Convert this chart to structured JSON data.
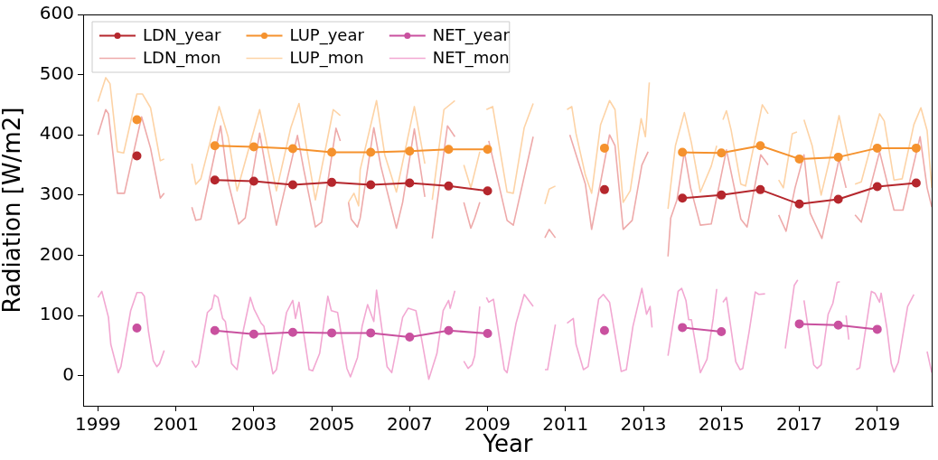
{
  "chart_data": {
    "type": "line",
    "xlabel": "Year",
    "ylabel": "Radiation [W/m2]",
    "xlim": [
      1998.62,
      2020.42
    ],
    "ylim": [
      -50,
      600
    ],
    "xticks": [
      1999,
      2001,
      2003,
      2005,
      2007,
      2009,
      2011,
      2013,
      2015,
      2017,
      2019
    ],
    "yticks": [
      0,
      100,
      200,
      300,
      400,
      500,
      600
    ],
    "grid": false,
    "legend": "top left",
    "line_style": "solid",
    "series": [
      {
        "name": "LDN_year",
        "color": "#b5272d",
        "marker": "circle",
        "x": [
          2000,
          2001,
          2002,
          2003,
          2004,
          2005,
          2006,
          2007,
          2008,
          2009,
          2010,
          2011,
          2012,
          2013,
          2014,
          2015,
          2016,
          2017,
          2018,
          2019,
          2020
        ],
        "values": [
          365,
          null,
          325,
          323,
          317,
          321,
          317,
          320,
          315,
          307,
          null,
          null,
          309,
          null,
          295,
          300,
          309,
          285,
          293,
          314,
          320
        ]
      },
      {
        "name": "LDN_mon",
        "color": "#eeaaaa",
        "marker": "none",
        "x": [
          1999.0,
          1999.2,
          1999.27,
          1999.5,
          1999.68,
          2000.12,
          2000.35,
          2000.6,
          2000.7,
          2001.0,
          2001.41,
          2001.51,
          2001.64,
          2002.15,
          2002.34,
          2002.61,
          2002.78,
          2003.15,
          2003.38,
          2003.58,
          2004.12,
          2004.28,
          2004.58,
          2004.74,
          2005.11,
          2005.22,
          2005.3,
          2005.43,
          2005.5,
          2005.66,
          2005.73,
          2006.08,
          2006.26,
          2006.66,
          2006.82,
          2007.12,
          2007.39,
          2007.5,
          2007.58,
          2007.97,
          2008.16,
          2008.3,
          2008.39,
          2008.57,
          2008.67,
          2008.8,
          2008.9,
          2009.03,
          2009.5,
          2009.66,
          2010.17,
          2010.3,
          2010.47,
          2010.58,
          2010.74,
          2010.9,
          2011.11,
          2011.51,
          2011.67,
          2012.13,
          2012.27,
          2012.48,
          2012.71,
          2012.96,
          2013.12,
          2013.4,
          2013.63,
          2013.7,
          2013.86,
          2014.05,
          2014.21,
          2014.46,
          2014.74,
          2015.13,
          2015.5,
          2015.66,
          2016.01,
          2016.2,
          2016.3,
          2016.47,
          2016.66,
          2016.89,
          2017.12,
          2017.28,
          2017.58,
          2018.02,
          2018.2,
          2018.35,
          2018.43,
          2018.59,
          2019.06,
          2019.43,
          2019.66,
          2020.1,
          2020.28,
          2020.4
        ],
        "values": [
          400,
          442,
          435,
          303,
          303,
          430,
          378,
          295,
          303,
          null,
          280,
          258,
          260,
          415,
          322,
          252,
          262,
          403,
          318,
          250,
          399,
          343,
          247,
          255,
          411,
          390,
          null,
          288,
          260,
          247,
          262,
          412,
          348,
          245,
          288,
          410,
          297,
          null,
          228,
          415,
          397,
          null,
          288,
          245,
          262,
          288,
          null,
          390,
          258,
          250,
          397,
          null,
          229,
          243,
          229,
          null,
          400,
          318,
          243,
          400,
          382,
          243,
          258,
          350,
          372,
          null,
          198,
          262,
          292,
          372,
          312,
          250,
          252,
          375,
          260,
          247,
          367,
          350,
          null,
          267,
          240,
          312,
          367,
          270,
          228,
          360,
          312,
          null,
          267,
          255,
          372,
          275,
          275,
          397,
          312,
          280
        ]
      },
      {
        "name": "LUP_year",
        "color": "#f5922e",
        "marker": "circle",
        "x": [
          2000,
          2001,
          2002,
          2003,
          2004,
          2005,
          2006,
          2007,
          2008,
          2009,
          2010,
          2011,
          2012,
          2013,
          2014,
          2015,
          2016,
          2017,
          2018,
          2019,
          2020
        ],
        "values": [
          425,
          null,
          382,
          380,
          377,
          371,
          371,
          373,
          376,
          376,
          null,
          null,
          378,
          null,
          371,
          370,
          382,
          360,
          363,
          378,
          378
        ]
      },
      {
        "name": "LUP_mon",
        "color": "#fdd3a6",
        "marker": "none",
        "x": [
          1999.0,
          1999.2,
          1999.31,
          1999.5,
          1999.66,
          2000.0,
          2000.14,
          2000.35,
          2000.6,
          2000.7,
          2001.0,
          2001.41,
          2001.51,
          2001.64,
          2002.11,
          2002.34,
          2002.57,
          2003.15,
          2003.58,
          2003.95,
          2004.16,
          2004.58,
          2005.04,
          2005.22,
          2005.3,
          2005.43,
          2005.57,
          2005.69,
          2005.73,
          2006.15,
          2006.36,
          2006.66,
          2007.12,
          2007.39,
          2007.5,
          2007.58,
          2007.74,
          2007.88,
          2008.16,
          2008.3,
          2008.39,
          2008.57,
          2008.8,
          2008.9,
          2008.97,
          2009.13,
          2009.5,
          2009.66,
          2009.94,
          2010.17,
          2010.3,
          2010.47,
          2010.58,
          2010.74,
          2010.9,
          2011.04,
          2011.16,
          2011.27,
          2011.51,
          2011.67,
          2011.9,
          2012.13,
          2012.27,
          2012.48,
          2012.66,
          2012.94,
          2013.05,
          2013.15,
          2013.4,
          2013.63,
          2013.82,
          2014.05,
          2014.23,
          2014.46,
          2014.74,
          2014.88,
          2014.95,
          2015.04,
          2015.13,
          2015.25,
          2015.5,
          2015.62,
          2016.05,
          2016.2,
          2016.3,
          2016.47,
          2016.59,
          2016.82,
          2016.94,
          2017.0,
          2017.12,
          2017.33,
          2017.56,
          2017.86,
          2018.02,
          2018.27,
          2018.35,
          2018.43,
          2018.59,
          2019.06,
          2019.18,
          2019.43,
          2019.64,
          2019.94,
          2020.12,
          2020.28,
          2020.4
        ],
        "values": [
          455,
          495,
          485,
          372,
          370,
          468,
          468,
          445,
          357,
          360,
          null,
          352,
          318,
          327,
          447,
          397,
          307,
          442,
          307,
          412,
          452,
          292,
          442,
          432,
          null,
          288,
          303,
          282,
          342,
          457,
          367,
          305,
          447,
          352,
          null,
          292,
          372,
          442,
          457,
          null,
          350,
          312,
          372,
          null,
          442,
          447,
          305,
          303,
          412,
          452,
          null,
          285,
          310,
          315,
          null,
          442,
          447,
          402,
          333,
          303,
          417,
          457,
          442,
          288,
          307,
          427,
          397,
          487,
          null,
          277,
          382,
          437,
          387,
          305,
          348,
          382,
          null,
          425,
          440,
          408,
          318,
          315,
          450,
          435,
          null,
          325,
          312,
          402,
          405,
          null,
          425,
          382,
          300,
          382,
          432,
          357,
          null,
          318,
          322,
          435,
          423,
          325,
          327,
          417,
          445,
          407,
          312
        ]
      },
      {
        "name": "NET_year",
        "color": "#c9519f",
        "marker": "circle",
        "x": [
          2000,
          2001,
          2002,
          2003,
          2004,
          2005,
          2006,
          2007,
          2008,
          2009,
          2010,
          2011,
          2012,
          2013,
          2014,
          2015,
          2016,
          2017,
          2018,
          2019
        ],
        "values": [
          79,
          null,
          75,
          69,
          72,
          71,
          71,
          64,
          75,
          70,
          null,
          null,
          75,
          null,
          80,
          73,
          null,
          86,
          84,
          77
        ]
      },
      {
        "name": "NET_mon",
        "color": "#f2a8d2",
        "marker": "none",
        "x": [
          1999.0,
          1999.1,
          1999.27,
          1999.33,
          1999.52,
          1999.59,
          1999.84,
          2000.0,
          2000.12,
          2000.19,
          2000.3,
          2000.42,
          2000.51,
          2000.58,
          2000.7,
          2001.0,
          2001.41,
          2001.51,
          2001.58,
          2001.81,
          2001.92,
          2001.99,
          2002.08,
          2002.2,
          2002.27,
          2002.43,
          2002.57,
          2002.73,
          2002.91,
          2003.01,
          2003.19,
          2003.26,
          2003.49,
          2003.58,
          2003.84,
          2004.0,
          2004.07,
          2004.16,
          2004.42,
          2004.51,
          2004.69,
          2004.9,
          2004.99,
          2005.15,
          2005.39,
          2005.48,
          2005.66,
          2005.78,
          2005.92,
          2006.08,
          2006.15,
          2006.42,
          2006.54,
          2006.82,
          2006.96,
          2007.16,
          2007.3,
          2007.49,
          2007.7,
          2007.86,
          2008.0,
          2008.04,
          2008.16,
          2008.3,
          2008.39,
          2008.5,
          2008.6,
          2008.67,
          2008.8,
          2008.9,
          2008.97,
          2009.03,
          2009.15,
          2009.43,
          2009.5,
          2009.73,
          2009.94,
          2010.17,
          2010.3,
          2010.47,
          2010.54,
          2010.74,
          2010.9,
          2011.04,
          2011.2,
          2011.27,
          2011.46,
          2011.58,
          2011.85,
          2011.97,
          2012.13,
          2012.43,
          2012.56,
          2012.73,
          2012.96,
          2013.08,
          2013.17,
          2013.22,
          2013.4,
          2013.63,
          2013.89,
          2013.98,
          2014.09,
          2014.16,
          2014.23,
          2014.46,
          2014.63,
          2014.79,
          2014.88,
          2014.95,
          2015.04,
          2015.13,
          2015.37,
          2015.48,
          2015.55,
          2015.71,
          2015.87,
          2015.96,
          2016.12,
          2016.3,
          2016.64,
          2016.87,
          2016.96,
          2017.0,
          2017.12,
          2017.37,
          2017.46,
          2017.56,
          2017.74,
          2017.86,
          2017.97,
          2018.04,
          2018.1,
          2018.2,
          2018.27,
          2018.35,
          2018.46,
          2018.55,
          2018.85,
          2018.94,
          2019.06,
          2019.1,
          2019.25,
          2019.36,
          2019.43,
          2019.54,
          2019.78,
          2019.94,
          2020.1,
          2020.28,
          2020.4
        ],
        "values": [
          130,
          140,
          97,
          52,
          5,
          15,
          108,
          138,
          138,
          132,
          72,
          25,
          15,
          20,
          42,
          null,
          25,
          14,
          20,
          105,
          112,
          134,
          130,
          95,
          90,
          20,
          10,
          75,
          130,
          110,
          87,
          82,
          3,
          10,
          105,
          125,
          95,
          122,
          10,
          8,
          37,
          132,
          108,
          105,
          12,
          -2,
          30,
          82,
          118,
          90,
          142,
          15,
          5,
          97,
          112,
          108,
          63,
          -6,
          37,
          108,
          125,
          112,
          141,
          null,
          24,
          12,
          18,
          33,
          115,
          null,
          130,
          122,
          127,
          10,
          5,
          87,
          135,
          115,
          null,
          10,
          10,
          85,
          null,
          87,
          95,
          52,
          10,
          15,
          127,
          135,
          122,
          7,
          10,
          82,
          145,
          102,
          115,
          80,
          null,
          33,
          140,
          145,
          125,
          93,
          93,
          5,
          27,
          95,
          144,
          null,
          122,
          130,
          23,
          10,
          12,
          72,
          139,
          135,
          136,
          null,
          45,
          150,
          159,
          null,
          125,
          18,
          12,
          18,
          102,
          120,
          155,
          156,
          null,
          100,
          60,
          null,
          10,
          13,
          140,
          137,
          122,
          137,
          78,
          20,
          6,
          22,
          115,
          135,
          null,
          40,
          5
        ]
      }
    ]
  }
}
